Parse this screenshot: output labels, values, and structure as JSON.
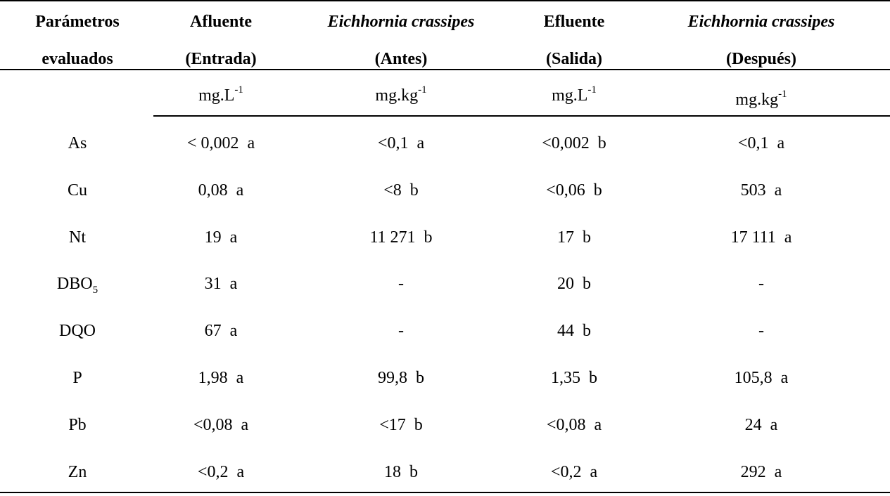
{
  "header": {
    "col1": [
      "Parámetros",
      "evaluados"
    ],
    "col2": [
      "Afluente",
      "(Entrada)"
    ],
    "col3": [
      "Eichhornia crassipes",
      "(Antes)"
    ],
    "col4": [
      "Efluente",
      "(Salida)"
    ],
    "col5": [
      "Eichhornia crassipes",
      "(Después)"
    ]
  },
  "units": {
    "col2": {
      "base": "mg.L",
      "exp": "-1"
    },
    "col3": {
      "base": "mg.kg",
      "exp": "-1"
    },
    "col4": {
      "base": "mg.L",
      "exp": "-1"
    },
    "col5": {
      "base": "mg.kg",
      "exp": "-1"
    }
  },
  "rows": [
    {
      "param": "As",
      "sub": "",
      "c2": "< 0,002  a",
      "c3": "<0,1  a",
      "c4": "<0,002  b",
      "c5": "<0,1  a"
    },
    {
      "param": "Cu",
      "sub": "",
      "c2": "0,08  a",
      "c3": "<8  b",
      "c4": "<0,06  b",
      "c5": "503  a"
    },
    {
      "param": "Nt",
      "sub": "",
      "c2": "19  a",
      "c3": "11 271  b",
      "c4": "17  b",
      "c5": "17 111  a"
    },
    {
      "param": "DBO",
      "sub": "5",
      "c2": "31  a",
      "c3": "-",
      "c4": "20  b",
      "c5": "-"
    },
    {
      "param": "DQO",
      "sub": "",
      "c2": "67  a",
      "c3": "-",
      "c4": "44  b",
      "c5": "-"
    },
    {
      "param": "P",
      "sub": "",
      "c2": "1,98  a",
      "c3": "99,8  b",
      "c4": "1,35  b",
      "c5": "105,8  a"
    },
    {
      "param": "Pb",
      "sub": "",
      "c2": "<0,08  a",
      "c3": "<17  b",
      "c4": "<0,08  a",
      "c5": "24  a"
    },
    {
      "param": "Zn",
      "sub": "",
      "c2": "<0,2  a",
      "c3": "18  b",
      "c4": "<0,2  a",
      "c5": "292  a"
    }
  ]
}
